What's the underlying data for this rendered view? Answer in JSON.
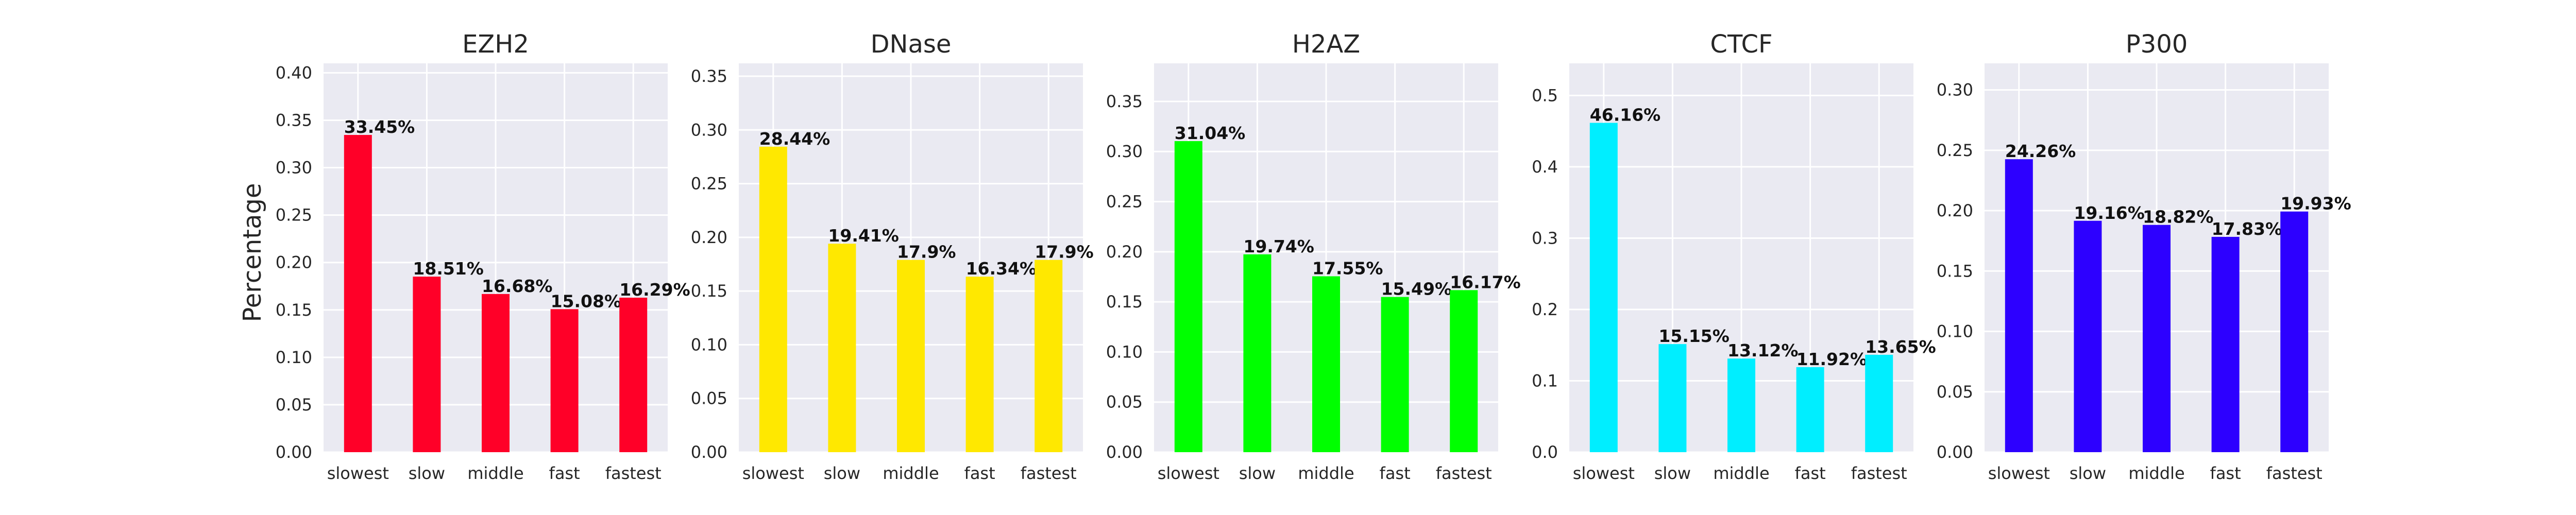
{
  "chart_data": [
    {
      "type": "bar",
      "title": "EZH2",
      "ylabel": "Percentage",
      "categories": [
        "slowest",
        "slow",
        "middle",
        "fast",
        "fastest"
      ],
      "values": [
        0.3345,
        0.1851,
        0.1668,
        0.1508,
        0.1629
      ],
      "data_labels": [
        "33.45%",
        "18.51%",
        "16.68%",
        "15.08%",
        "16.29%"
      ],
      "ylim": [
        0,
        0.41
      ],
      "yticks": [
        0.0,
        0.05,
        0.1,
        0.15,
        0.2,
        0.25,
        0.3,
        0.35,
        0.4
      ],
      "ytick_labels": [
        "0.00",
        "0.05",
        "0.10",
        "0.15",
        "0.20",
        "0.25",
        "0.30",
        "0.35",
        "0.40"
      ],
      "color": "#ff0028",
      "grid": true
    },
    {
      "type": "bar",
      "title": "DNase",
      "ylabel": "",
      "categories": [
        "slowest",
        "slow",
        "middle",
        "fast",
        "fastest"
      ],
      "values": [
        0.2844,
        0.1941,
        0.179,
        0.1634,
        0.179
      ],
      "data_labels": [
        "28.44%",
        "19.41%",
        "17.9%",
        "16.34%",
        "17.9%"
      ],
      "ylim": [
        0,
        0.362
      ],
      "yticks": [
        0.0,
        0.05,
        0.1,
        0.15,
        0.2,
        0.25,
        0.3,
        0.35
      ],
      "ytick_labels": [
        "0.00",
        "0.05",
        "0.10",
        "0.15",
        "0.20",
        "0.25",
        "0.30",
        "0.35"
      ],
      "color": "#ffe800",
      "grid": true
    },
    {
      "type": "bar",
      "title": "H2AZ",
      "ylabel": "",
      "categories": [
        "slowest",
        "slow",
        "middle",
        "fast",
        "fastest"
      ],
      "values": [
        0.3104,
        0.1974,
        0.1755,
        0.1549,
        0.1617
      ],
      "data_labels": [
        "31.04%",
        "19.74%",
        "17.55%",
        "15.49%",
        "16.17%"
      ],
      "ylim": [
        0,
        0.388
      ],
      "yticks": [
        0.0,
        0.05,
        0.1,
        0.15,
        0.2,
        0.25,
        0.3,
        0.35
      ],
      "ytick_labels": [
        "0.00",
        "0.05",
        "0.10",
        "0.15",
        "0.20",
        "0.25",
        "0.30",
        "0.35"
      ],
      "color": "#00ff00",
      "grid": true
    },
    {
      "type": "bar",
      "title": "CTCF",
      "ylabel": "",
      "categories": [
        "slowest",
        "slow",
        "middle",
        "fast",
        "fastest"
      ],
      "values": [
        0.4616,
        0.1515,
        0.1312,
        0.1192,
        0.1365
      ],
      "data_labels": [
        "46.16%",
        "15.15%",
        "13.12%",
        "11.92%",
        "13.65%"
      ],
      "ylim": [
        0,
        0.545
      ],
      "yticks": [
        0.0,
        0.1,
        0.2,
        0.3,
        0.4,
        0.5
      ],
      "ytick_labels": [
        "0.0",
        "0.1",
        "0.2",
        "0.3",
        "0.4",
        "0.5"
      ],
      "color": "#00eeff",
      "grid": true
    },
    {
      "type": "bar",
      "title": "P300",
      "ylabel": "",
      "categories": [
        "slowest",
        "slow",
        "middle",
        "fast",
        "fastest"
      ],
      "values": [
        0.2426,
        0.1916,
        0.1882,
        0.1783,
        0.1993
      ],
      "data_labels": [
        "24.26%",
        "19.16%",
        "18.82%",
        "17.83%",
        "19.93%"
      ],
      "ylim": [
        0,
        0.322
      ],
      "yticks": [
        0.0,
        0.05,
        0.1,
        0.15,
        0.2,
        0.25,
        0.3
      ],
      "ytick_labels": [
        "0.00",
        "0.05",
        "0.10",
        "0.15",
        "0.20",
        "0.25",
        "0.30"
      ],
      "color": "#2d00ff",
      "grid": true
    }
  ]
}
